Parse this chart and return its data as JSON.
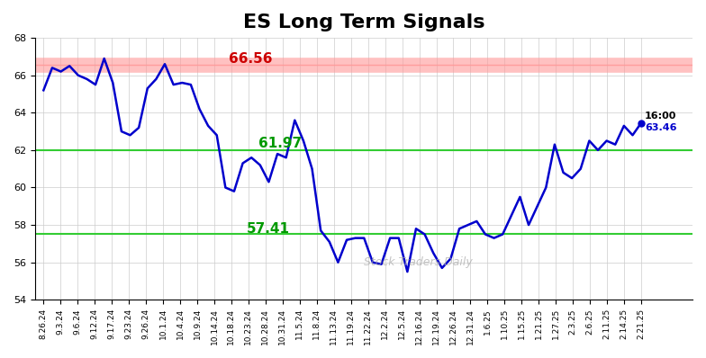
{
  "title": "ES Long Term Signals",
  "title_fontsize": 16,
  "title_fontweight": "bold",
  "background_color": "#ffffff",
  "line_color": "#0000cc",
  "line_width": 1.8,
  "hline_red": 66.56,
  "hline_red_color": "#ff9999",
  "hline_red_label_color": "#cc0000",
  "hline_green1": 62.0,
  "hline_green2": 57.5,
  "hline_green_color": "#33cc33",
  "label_61_97": 61.97,
  "label_57_41": 57.41,
  "label_66_56": 66.56,
  "last_value": 63.46,
  "last_label": "16:00",
  "watermark": "Stock Traders Daily",
  "watermark_color": "#aaaaaa",
  "ylim": [
    54,
    68
  ],
  "yticks": [
    54,
    56,
    58,
    60,
    62,
    64,
    66,
    68
  ],
  "grid_color": "#cccccc",
  "dot_color": "#0000cc",
  "x_labels": [
    "8.26.24",
    "9.3.24",
    "9.6.24",
    "9.12.24",
    "9.17.24",
    "9.23.24",
    "9.26.24",
    "10.1.24",
    "10.4.24",
    "10.9.24",
    "10.14.24",
    "10.18.24",
    "10.23.24",
    "10.28.24",
    "10.31.24",
    "11.5.24",
    "11.8.24",
    "11.13.24",
    "11.19.24",
    "11.22.24",
    "12.2.24",
    "12.5.24",
    "12.16.24",
    "12.19.24",
    "12.26.24",
    "12.31.24",
    "1.6.25",
    "1.10.25",
    "1.15.25",
    "1.21.25",
    "1.27.25",
    "2.3.25",
    "2.6.25",
    "2.11.25",
    "2.14.25",
    "2.21.25"
  ],
  "y_values": [
    65.2,
    66.4,
    66.2,
    66.5,
    66.0,
    65.8,
    65.5,
    66.9,
    65.6,
    63.0,
    62.8,
    63.2,
    65.3,
    65.8,
    66.6,
    65.5,
    65.6,
    65.5,
    64.2,
    63.3,
    62.8,
    60.0,
    59.8,
    61.3,
    61.6,
    61.2,
    60.3,
    61.8,
    61.6,
    63.6,
    62.5,
    61.0,
    57.7,
    57.1,
    56.0,
    57.2,
    57.3,
    57.3,
    56.0,
    55.9,
    57.3,
    57.3,
    55.5,
    57.8,
    57.5,
    56.5,
    55.7,
    56.2,
    57.8,
    58.0,
    58.2,
    57.5,
    57.3,
    57.5,
    58.5,
    59.5,
    58.0,
    59.0,
    60.0,
    62.3,
    60.8,
    60.5,
    61.0,
    62.5,
    62.0,
    62.5,
    62.3,
    63.3,
    62.8,
    63.46
  ]
}
